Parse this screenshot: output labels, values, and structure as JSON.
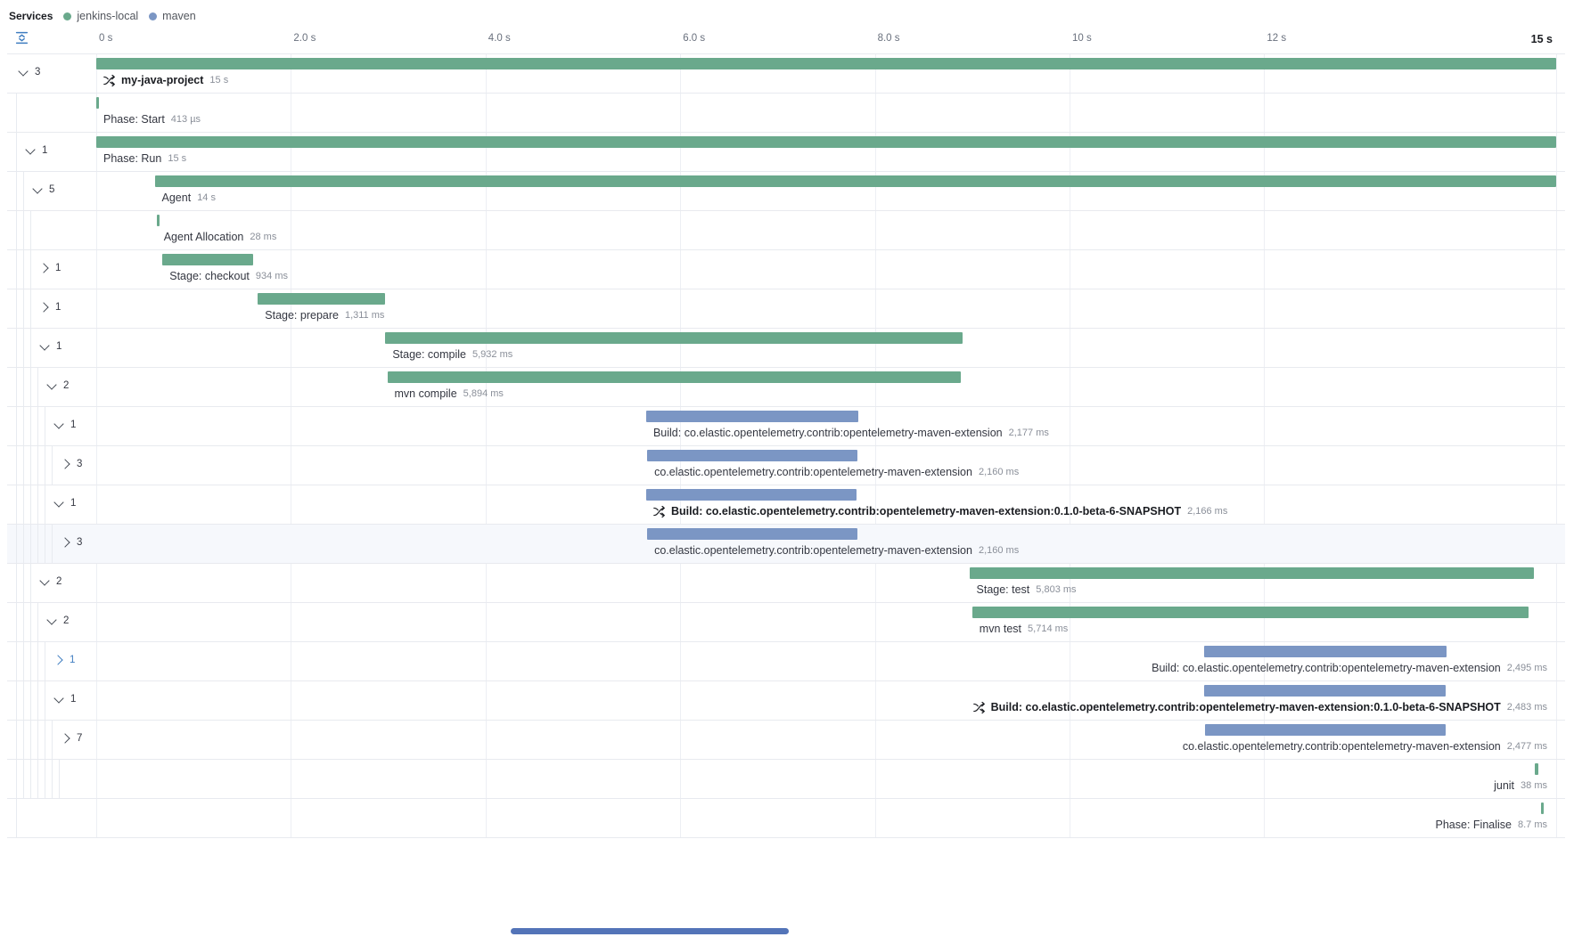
{
  "services_legend": {
    "label": "Services",
    "items": [
      {
        "name": "jenkins-local",
        "color": "#6aa98c"
      },
      {
        "name": "maven",
        "color": "#7b96c4"
      }
    ]
  },
  "toolbar": {
    "collapse_icon_color": "#3f7dc0"
  },
  "axis": {
    "total_s": 15,
    "ticks": [
      {
        "label": "0 s",
        "s": 0
      },
      {
        "label": "2.0 s",
        "s": 2
      },
      {
        "label": "4.0 s",
        "s": 4
      },
      {
        "label": "6.0 s",
        "s": 6
      },
      {
        "label": "8.0 s",
        "s": 8
      },
      {
        "label": "10 s",
        "s": 10
      },
      {
        "label": "12 s",
        "s": 12
      },
      {
        "label": "15 s",
        "s": 15,
        "bold": true,
        "align_right": true
      }
    ]
  },
  "waterfall": {
    "rows": [
      {
        "name": "my-java-project",
        "duration": "15 s",
        "service": "jenkins-local",
        "start_s": 0,
        "duration_s": 15,
        "depth": 0,
        "toggle": {
          "state": "expanded",
          "count": 3
        },
        "bold": true,
        "transaction_icon": true
      },
      {
        "name": "Phase: Start",
        "duration": "413 µs",
        "service": "jenkins-local",
        "start_s": 0,
        "duration_s": 0.000413,
        "depth": 1,
        "toggle": null
      },
      {
        "name": "Phase: Run",
        "duration": "15 s",
        "service": "jenkins-local",
        "start_s": 0,
        "duration_s": 15,
        "depth": 1,
        "toggle": {
          "state": "expanded",
          "count": 1
        }
      },
      {
        "name": "Agent",
        "duration": "14 s",
        "service": "jenkins-local",
        "start_s": 0.6,
        "duration_s": 14.4,
        "depth": 2,
        "toggle": {
          "state": "expanded",
          "count": 5
        }
      },
      {
        "name": "Agent Allocation",
        "duration": "28 ms",
        "service": "jenkins-local",
        "start_s": 0.62,
        "duration_s": 0.028,
        "depth": 3,
        "toggle": null
      },
      {
        "name": "Stage: checkout",
        "duration": "934 ms",
        "service": "jenkins-local",
        "start_s": 0.68,
        "duration_s": 0.934,
        "depth": 3,
        "toggle": {
          "state": "collapsed",
          "count": 1
        }
      },
      {
        "name": "Stage: prepare",
        "duration": "1,311 ms",
        "service": "jenkins-local",
        "start_s": 1.66,
        "duration_s": 1.311,
        "depth": 3,
        "toggle": {
          "state": "collapsed",
          "count": 1
        }
      },
      {
        "name": "Stage: compile",
        "duration": "5,932 ms",
        "service": "jenkins-local",
        "start_s": 2.97,
        "duration_s": 5.932,
        "depth": 3,
        "toggle": {
          "state": "expanded",
          "count": 1
        }
      },
      {
        "name": "mvn compile",
        "duration": "5,894 ms",
        "service": "jenkins-local",
        "start_s": 2.99,
        "duration_s": 5.894,
        "depth": 4,
        "toggle": {
          "state": "expanded",
          "count": 2
        }
      },
      {
        "name": "Build: co.elastic.opentelemetry.contrib:opentelemetry-maven-extension",
        "duration": "2,177 ms",
        "service": "maven",
        "start_s": 5.65,
        "duration_s": 2.177,
        "depth": 5,
        "toggle": {
          "state": "expanded",
          "count": 1
        }
      },
      {
        "name": "co.elastic.opentelemetry.contrib:opentelemetry-maven-extension",
        "duration": "2,160 ms",
        "service": "maven",
        "start_s": 5.66,
        "duration_s": 2.16,
        "depth": 6,
        "toggle": {
          "state": "collapsed",
          "count": 3
        }
      },
      {
        "name": "Build: co.elastic.opentelemetry.contrib:opentelemetry-maven-extension:0.1.0-beta-6-SNAPSHOT",
        "duration": "2,166 ms",
        "service": "maven",
        "start_s": 5.65,
        "duration_s": 2.166,
        "depth": 5,
        "toggle": {
          "state": "expanded",
          "count": 1
        },
        "bold": true,
        "transaction_icon": true
      },
      {
        "name": "co.elastic.opentelemetry.contrib:opentelemetry-maven-extension",
        "duration": "2,160 ms",
        "service": "maven",
        "start_s": 5.66,
        "duration_s": 2.16,
        "depth": 6,
        "toggle": {
          "state": "collapsed",
          "count": 3
        },
        "selected": true
      },
      {
        "name": "Stage: test",
        "duration": "5,803 ms",
        "service": "jenkins-local",
        "start_s": 8.97,
        "duration_s": 5.803,
        "depth": 3,
        "toggle": {
          "state": "expanded",
          "count": 2
        }
      },
      {
        "name": "mvn test",
        "duration": "5,714 ms",
        "service": "jenkins-local",
        "start_s": 9.0,
        "duration_s": 5.714,
        "depth": 4,
        "toggle": {
          "state": "expanded",
          "count": 2
        }
      },
      {
        "name": "Build: co.elastic.opentelemetry.contrib:opentelemetry-maven-extension",
        "duration": "2,495 ms",
        "service": "maven",
        "start_s": 11.38,
        "duration_s": 2.495,
        "depth": 5,
        "toggle": {
          "state": "collapsed",
          "count": 1
        },
        "toggle_highlighted": true,
        "label_align": "right"
      },
      {
        "name": "Build: co.elastic.opentelemetry.contrib:opentelemetry-maven-extension:0.1.0-beta-6-SNAPSHOT",
        "duration": "2,483 ms",
        "service": "maven",
        "start_s": 11.38,
        "duration_s": 2.483,
        "depth": 5,
        "toggle": {
          "state": "expanded",
          "count": 1
        },
        "bold": true,
        "transaction_icon": true,
        "label_align": "right"
      },
      {
        "name": "co.elastic.opentelemetry.contrib:opentelemetry-maven-extension",
        "duration": "2,477 ms",
        "service": "maven",
        "start_s": 11.39,
        "duration_s": 2.477,
        "depth": 6,
        "toggle": {
          "state": "collapsed",
          "count": 7
        },
        "label_align": "right"
      },
      {
        "name": "junit",
        "duration": "38 ms",
        "service": "jenkins-local",
        "start_s": 14.78,
        "duration_s": 0.038,
        "depth": 7,
        "toggle": null,
        "label_align": "right"
      },
      {
        "name": "Phase: Finalise",
        "duration": "8.7 ms",
        "service": "jenkins-local",
        "start_s": 14.84,
        "duration_s": 0.0087,
        "depth": 1,
        "toggle": null,
        "label_align": "right"
      }
    ]
  }
}
